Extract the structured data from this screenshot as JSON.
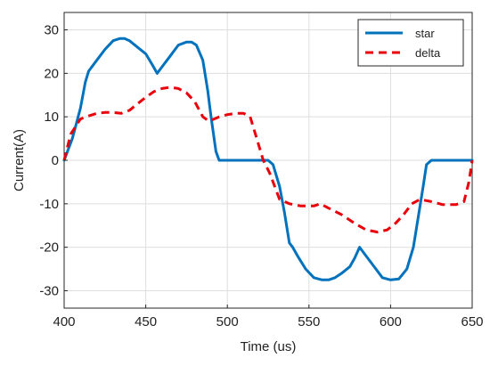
{
  "chart_data": {
    "type": "line",
    "title": "",
    "xlabel": "Time (us)",
    "ylabel": "Current(A)",
    "xlim": [
      400,
      650
    ],
    "ylim": [
      -34,
      34
    ],
    "xticks": [
      400,
      450,
      500,
      550,
      600,
      650
    ],
    "yticks": [
      -30,
      -20,
      -10,
      0,
      10,
      20,
      30
    ],
    "grid": true,
    "legend_position": "top-right",
    "series": [
      {
        "name": "star",
        "color": "#0072BD",
        "style": "solid",
        "points": [
          [
            400,
            0
          ],
          [
            405,
            5
          ],
          [
            410,
            12
          ],
          [
            413,
            18
          ],
          [
            415,
            20.5
          ],
          [
            420,
            23
          ],
          [
            425,
            25.5
          ],
          [
            430,
            27.5
          ],
          [
            434,
            28
          ],
          [
            437,
            28
          ],
          [
            440,
            27.5
          ],
          [
            445,
            26
          ],
          [
            450,
            24.5
          ],
          [
            454,
            22
          ],
          [
            457,
            20
          ],
          [
            460,
            21.5
          ],
          [
            465,
            24
          ],
          [
            470,
            26.5
          ],
          [
            475,
            27.2
          ],
          [
            478,
            27.2
          ],
          [
            481,
            26.5
          ],
          [
            485,
            23
          ],
          [
            488,
            16
          ],
          [
            490,
            10
          ],
          [
            493,
            2
          ],
          [
            495,
            0
          ],
          [
            500,
            0
          ],
          [
            525,
            0
          ],
          [
            528,
            -1
          ],
          [
            532,
            -6
          ],
          [
            535,
            -12
          ],
          [
            538,
            -19
          ],
          [
            540,
            -20
          ],
          [
            543,
            -22
          ],
          [
            548,
            -25
          ],
          [
            553,
            -27
          ],
          [
            558,
            -27.5
          ],
          [
            562,
            -27.5
          ],
          [
            566,
            -27
          ],
          [
            570,
            -26
          ],
          [
            575,
            -24.5
          ],
          [
            578,
            -22.5
          ],
          [
            581,
            -20
          ],
          [
            584,
            -21.5
          ],
          [
            590,
            -24.5
          ],
          [
            595,
            -27
          ],
          [
            600,
            -27.5
          ],
          [
            605,
            -27.3
          ],
          [
            610,
            -25
          ],
          [
            614,
            -20
          ],
          [
            617,
            -13
          ],
          [
            620,
            -6
          ],
          [
            622,
            -1
          ],
          [
            625,
            0
          ],
          [
            650,
            0
          ]
        ]
      },
      {
        "name": "delta",
        "color": "#E8000B",
        "style": "dashed",
        "points": [
          [
            400,
            0
          ],
          [
            404,
            6
          ],
          [
            410,
            9.5
          ],
          [
            415,
            10.2
          ],
          [
            420,
            10.8
          ],
          [
            425,
            11
          ],
          [
            430,
            11
          ],
          [
            435,
            10.8
          ],
          [
            440,
            11.5
          ],
          [
            445,
            13
          ],
          [
            450,
            14.5
          ],
          [
            455,
            15.8
          ],
          [
            460,
            16.5
          ],
          [
            465,
            16.8
          ],
          [
            470,
            16.5
          ],
          [
            475,
            15.5
          ],
          [
            480,
            13.5
          ],
          [
            485,
            10
          ],
          [
            488,
            9.2
          ],
          [
            490,
            9.2
          ],
          [
            495,
            10
          ],
          [
            500,
            10.5
          ],
          [
            505,
            10.8
          ],
          [
            510,
            10.8
          ],
          [
            514,
            10
          ],
          [
            518,
            5
          ],
          [
            522,
            0
          ],
          [
            526,
            -3
          ],
          [
            532,
            -9
          ],
          [
            538,
            -10
          ],
          [
            545,
            -10.5
          ],
          [
            553,
            -10.5
          ],
          [
            557,
            -10
          ],
          [
            562,
            -11
          ],
          [
            570,
            -12.5
          ],
          [
            578,
            -14.5
          ],
          [
            585,
            -16
          ],
          [
            592,
            -16.5
          ],
          [
            598,
            -16
          ],
          [
            603,
            -14.5
          ],
          [
            608,
            -12.5
          ],
          [
            613,
            -10
          ],
          [
            618,
            -9
          ],
          [
            625,
            -9.5
          ],
          [
            632,
            -10.2
          ],
          [
            640,
            -10.2
          ],
          [
            645,
            -9.5
          ],
          [
            648,
            -5
          ],
          [
            650,
            0
          ]
        ]
      }
    ]
  }
}
